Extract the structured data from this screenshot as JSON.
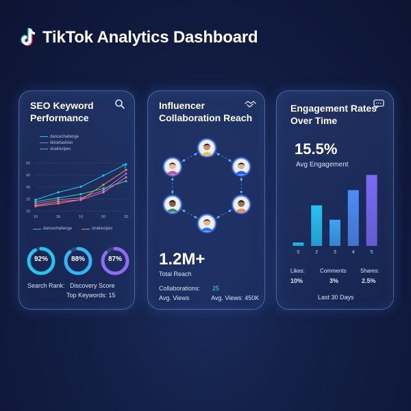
{
  "header": {
    "title": "TikTok Analytics Dashboard",
    "logo_icon": "tiktok-logo-icon"
  },
  "seo_card": {
    "title": "SEO Keyword\nPerformance",
    "icon": "search-icon",
    "legend_top": [
      "dancechallenge",
      "tiktokfashion",
      "viralrecipes"
    ],
    "legend_bottom": [
      "dancechallenge",
      "viralrecipes"
    ],
    "y_ticks": [
      "50",
      "40",
      "30",
      "20",
      "10"
    ],
    "x_ticks": [
      "10",
      "30",
      "10",
      "50",
      "20"
    ],
    "rings": [
      {
        "label": "92%",
        "value": 0.92,
        "color": "#22c6f0"
      },
      {
        "label": "88%",
        "value": 0.88,
        "color": "#2fb8f5"
      },
      {
        "label": "87%",
        "value": 0.87,
        "color": "#8c6cf5"
      }
    ],
    "search_rank": "Search Rank:",
    "discovery_score": "Discovery Score",
    "top_keywords_label": "Top Keywords:",
    "top_keywords_value": "15"
  },
  "influencer_card": {
    "title": "Influencer\nCollaboration Reach",
    "icon": "handshake-icon",
    "total_reach_value": "1.2M+",
    "total_reach_label": "Total Reach",
    "collaborations_label": "Collaborations:",
    "collaborations_value": "25",
    "avg_views_label": "Avg. Views",
    "avg_views_full": "Avg. Views: 450K"
  },
  "engagement_card": {
    "title": "Engagement Rates\nOver Time",
    "icon": "chat-icon",
    "rate_value": "15.5%",
    "rate_label": "Avg Engagement",
    "x_labels": [
      "0",
      "2",
      "3",
      "4",
      "5"
    ],
    "likes_label": "Likes:",
    "likes_value": "10%",
    "comments_label": "Comments",
    "comments_value": "3%",
    "shares_label": "Shares:",
    "shares_value": "2.5%",
    "period": "Last 30 Days"
  },
  "chart_data": [
    {
      "type": "line",
      "title": "SEO Keyword Performance",
      "x": [
        10,
        20,
        30,
        40,
        50
      ],
      "ylim": [
        0,
        55
      ],
      "series": [
        {
          "name": "dancechallenge",
          "color": "#22c6f0",
          "values": [
            12,
            20,
            26,
            38,
            50
          ]
        },
        {
          "name": "tiktokfashion",
          "color": "#a86cf5",
          "values": [
            8,
            12,
            14,
            22,
            40
          ]
        },
        {
          "name": "viralrecipes",
          "color": "#2fd39a",
          "values": [
            10,
            14,
            18,
            24,
            32
          ]
        },
        {
          "name": "viralrecipes",
          "color": "#f08a4a",
          "values": [
            6,
            10,
            12,
            28,
            44
          ]
        },
        {
          "name": "tiktokfashion",
          "color": "#ff6b8a",
          "values": [
            5,
            8,
            12,
            20,
            36
          ]
        }
      ]
    },
    {
      "type": "bar",
      "title": "Engagement Rates Over Time",
      "categories": [
        "0",
        "2",
        "3",
        "4",
        "5"
      ],
      "values": [
        4,
        48,
        31,
        66,
        84
      ],
      "ylim": [
        0,
        90
      ],
      "colors": [
        "#22c6f0",
        "#25c2f2",
        "#3aa4f2",
        "#4f8cf4",
        "#7a6cf5"
      ]
    }
  ],
  "influencers": [
    {
      "name": "avatar-top",
      "skin": "#c98e5f",
      "hair": "#2a1a10",
      "shirt": "#f2c23a"
    },
    {
      "name": "avatar-top-right",
      "skin": "#e0b08a",
      "hair": "#2a1a10",
      "shirt": "#1c5cff"
    },
    {
      "name": "avatar-bottom-right",
      "skin": "#a86a44",
      "hair": "#1a0f08",
      "shirt": "#f28c3a"
    },
    {
      "name": "avatar-bottom",
      "skin": "#e8b58f",
      "hair": "#4a2a18",
      "shirt": "#2c6cff"
    },
    {
      "name": "avatar-bottom-left",
      "skin": "#8a5a3c",
      "hair": "#1a0f08",
      "shirt": "#3a8a5c"
    },
    {
      "name": "avatar-top-left",
      "skin": "#e7b894",
      "hair": "#3a2010",
      "shirt": "#d84a8c"
    }
  ]
}
